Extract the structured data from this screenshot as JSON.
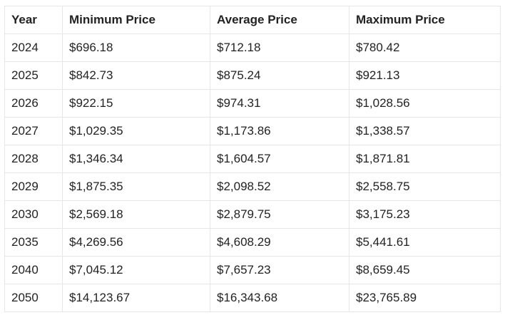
{
  "table": {
    "header": [
      "Year",
      "Minimum Price",
      "Average Price",
      "Maximum Price"
    ],
    "rows": [
      [
        "2024",
        "$696.18",
        "$712.18",
        "$780.42"
      ],
      [
        "2025",
        "$842.73",
        "$875.24",
        "$921.13"
      ],
      [
        "2026",
        "$922.15",
        "$974.31",
        "$1,028.56"
      ],
      [
        "2027",
        "$1,029.35",
        "$1,173.86",
        "$1,338.57"
      ],
      [
        "2028",
        "$1,346.34",
        "$1,604.57",
        "$1,871.81"
      ],
      [
        "2029",
        "$1,875.35",
        "$2,098.52",
        "$2,558.75"
      ],
      [
        "2030",
        "$2,569.18",
        "$2,879.75",
        "$3,175.23"
      ],
      [
        "2035",
        "$4,269.56",
        "$4,608.29",
        "$5,441.61"
      ],
      [
        "2040",
        "$7,045.12",
        "$7,657.23",
        "$8,659.45"
      ],
      [
        "2050",
        "$14,123.67",
        "$16,343.68",
        "$23,765.89"
      ]
    ]
  }
}
